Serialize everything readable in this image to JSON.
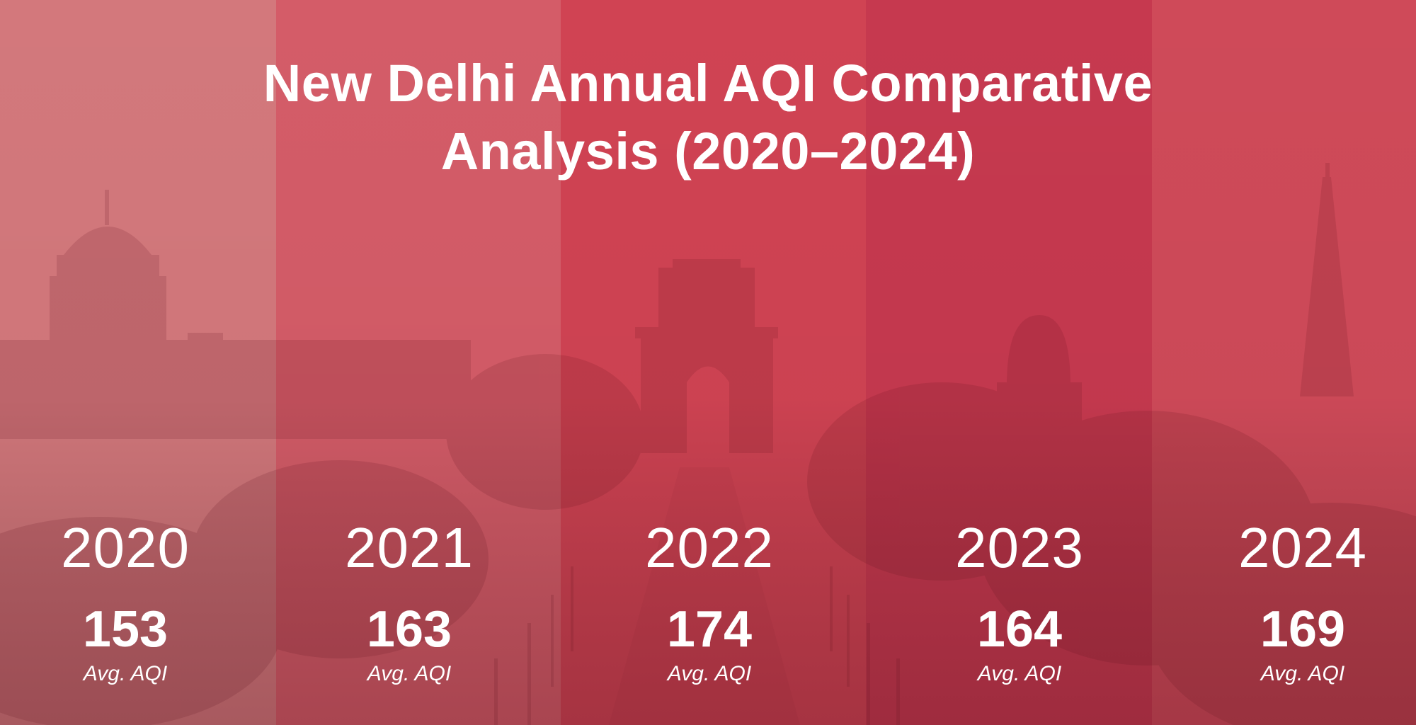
{
  "title": "New Delhi Annual AQI Comparative Analysis (2020–2024)",
  "chart_data": {
    "type": "bar",
    "title": "New Delhi Annual AQI Comparative Analysis (2020–2024)",
    "categories": [
      "2020",
      "2021",
      "2022",
      "2023",
      "2024"
    ],
    "values": [
      153,
      163,
      174,
      164,
      169
    ],
    "value_label": "Avg. AQI",
    "column_colors": [
      "#d3787c",
      "#d45c68",
      "#d04353",
      "#c6394f",
      "#cf4a59"
    ],
    "background_image": "misty New Delhi skyline with Rashtrapati Bhavan dome, India Gate, domed tomb and Qutub Minar silhouettes"
  }
}
